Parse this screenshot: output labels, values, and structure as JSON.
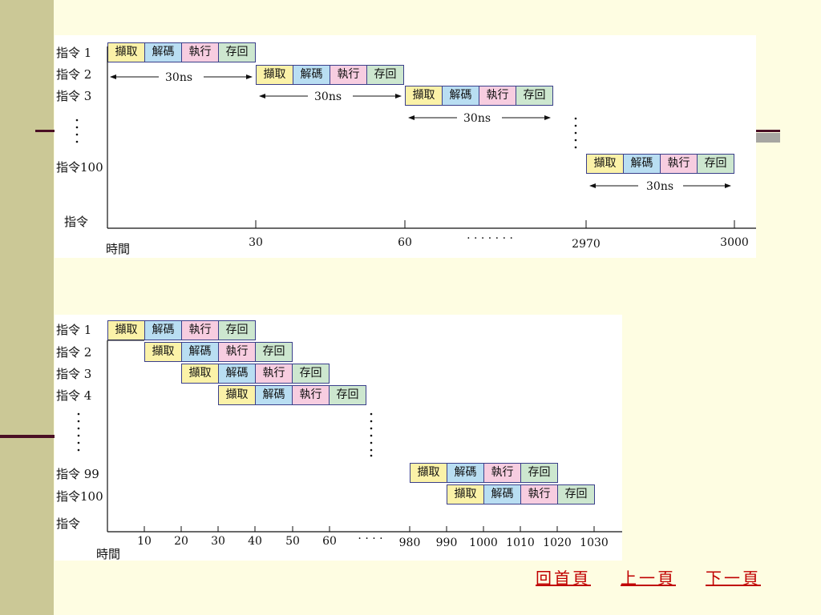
{
  "stage_names": [
    "擷取",
    "解碼",
    "執行",
    "存回"
  ],
  "colors": {
    "fetch": "#fbf2a8",
    "decode": "#b9def2",
    "execute": "#f7cde0",
    "store": "#cde7cf",
    "nav_link": "#c00000"
  },
  "diagram1": {
    "title": "",
    "rows": [
      {
        "label": "指令 1",
        "start": 0
      },
      {
        "label": "指令 2",
        "start": 30
      },
      {
        "label": "指令 3",
        "start": 60
      },
      {
        "label": "指令100",
        "start": 2970
      }
    ],
    "duration_label": "30ns",
    "y_axis_label": "指令",
    "x_axis_label": "時間",
    "ticks": [
      "30",
      "60",
      "2970",
      "3000"
    ],
    "ellipsis": "· · · · · · ·"
  },
  "diagram2": {
    "title": "",
    "rows": [
      {
        "label": "指令 1",
        "start": 0
      },
      {
        "label": "指令 2",
        "start": 10
      },
      {
        "label": "指令 3",
        "start": 20
      },
      {
        "label": "指令 4",
        "start": 30
      },
      {
        "label": "指令 99",
        "start": 980
      },
      {
        "label": "指令100",
        "start": 990
      }
    ],
    "y_axis_label": "指令",
    "x_axis_label": "時間",
    "ticks": [
      "10",
      "20",
      "30",
      "40",
      "50",
      "60",
      "980",
      "990",
      "1000",
      "1010",
      "1020",
      "1030"
    ],
    "ellipsis": "· · · ·"
  },
  "nav": {
    "home": "回首頁",
    "prev": "上一頁",
    "next": "下一頁"
  }
}
